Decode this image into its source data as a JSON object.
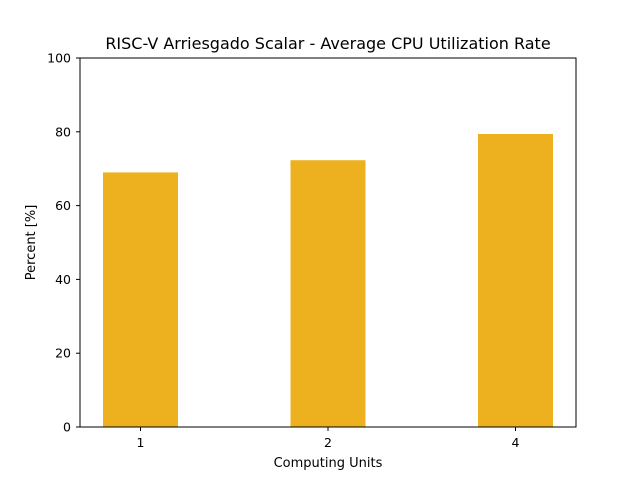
{
  "chart_data": {
    "type": "bar",
    "title": "RISC-V Arriesgado Scalar - Average CPU Utilization Rate",
    "xlabel": "Computing Units",
    "ylabel": "Percent [%]",
    "categories": [
      "1",
      "2",
      "4"
    ],
    "values": [
      69.0,
      72.3,
      79.4
    ],
    "ylim": [
      0,
      100
    ],
    "yticks": [
      "0",
      "20",
      "40",
      "60",
      "80",
      "100"
    ],
    "grid": false,
    "legend": "none",
    "bar_color": "#edb120"
  }
}
